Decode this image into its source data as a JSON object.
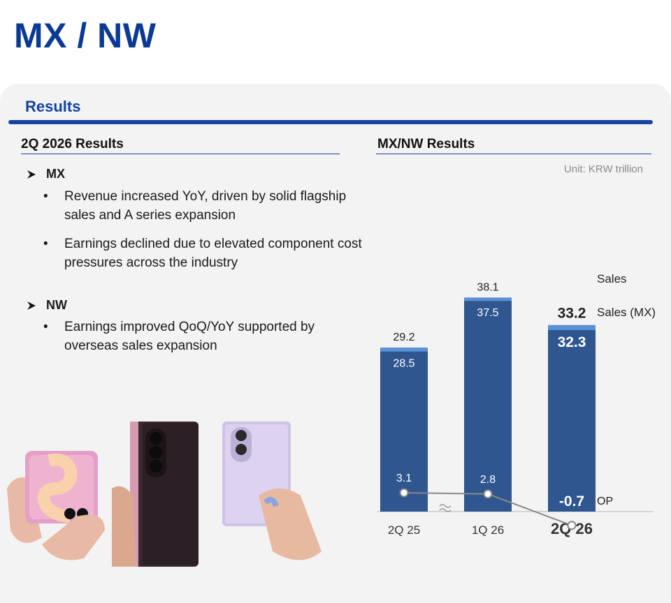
{
  "page": {
    "title": "MX / NW",
    "section_title": "Results",
    "left_heading": "2Q 2026 Results",
    "right_heading": "MX/NW Results",
    "unit": "Unit:  KRW trillion"
  },
  "content": {
    "mx": {
      "label": "MX",
      "bullets": [
        "Revenue increased YoY, driven by solid flagship sales and A series expansion",
        "Earnings declined due to elevated component cost pressures across the industry"
      ]
    },
    "nw": {
      "label": "NW",
      "bullets": [
        "Earnings improved QoQ/YoY supported by overseas sales expansion"
      ]
    }
  },
  "colors": {
    "brand_blue": "#0b3a95",
    "bar_dark": "#2f568f",
    "bar_light": "#5a90d6",
    "op_line": "#888888"
  },
  "chart_data": {
    "type": "bar",
    "categories": [
      "2Q 25",
      "1Q 26",
      "2Q 26"
    ],
    "series": [
      {
        "name": "Sales",
        "values": [
          29.2,
          38.1,
          33.2
        ]
      },
      {
        "name": "Sales (MX)",
        "values": [
          28.5,
          37.5,
          32.3
        ]
      },
      {
        "name": "OP",
        "values": [
          3.1,
          2.8,
          -0.7
        ]
      }
    ],
    "axis_break_between": [
      "2Q 25",
      "1Q 26"
    ],
    "highlight_category": "2Q 26"
  }
}
